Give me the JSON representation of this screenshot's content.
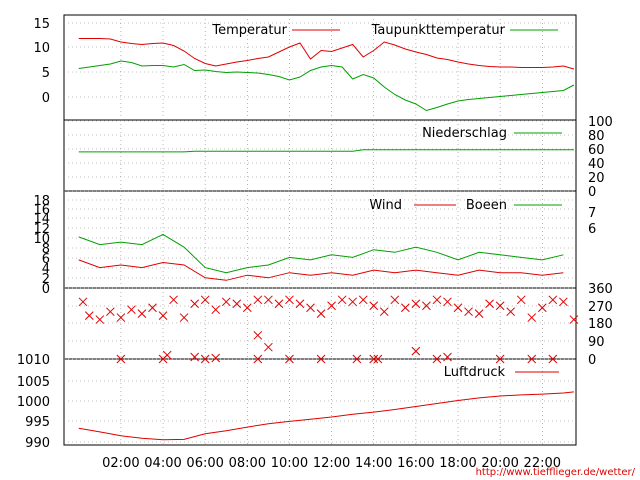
{
  "source_url": "http://www.tiefflieger.de/wetter/",
  "colors": {
    "red": "#e00000",
    "green": "#00a000",
    "grid": "#888888"
  },
  "chart_data": [
    {
      "type": "line",
      "ylim": [
        -5,
        16
      ],
      "yticks": [
        "15",
        "10",
        "5",
        "0"
      ],
      "grid": true,
      "legend_placement": "top-right",
      "series": [
        {
          "name": "Temperatur",
          "color": "red",
          "x": [
            0,
            0.5,
            1,
            1.5,
            2,
            2.5,
            3,
            3.5,
            4,
            4.5,
            5,
            5.5,
            6,
            6.5,
            7,
            7.5,
            8,
            8.5,
            9,
            9.5,
            10,
            10.5,
            11,
            11.5,
            12,
            12.5,
            13,
            13.5,
            14,
            14.5,
            15,
            15.5,
            16,
            16.5,
            17,
            17.5,
            18,
            18.5,
            19,
            19.5,
            20,
            20.5,
            21,
            21.5,
            22,
            22.5,
            23,
            23.5
          ],
          "y": [
            11.3,
            11.3,
            11.3,
            11.2,
            10.6,
            10.3,
            10.1,
            10.3,
            10.4,
            9.9,
            8.8,
            7.3,
            6.3,
            5.8,
            6.2,
            6.6,
            6.9,
            7.3,
            7.6,
            8.6,
            9.6,
            10.4,
            7.2,
            8.9,
            8.7,
            9.4,
            10.1,
            7.6,
            8.9,
            10.6,
            10.0,
            9.2,
            8.6,
            8.1,
            7.4,
            7.1,
            6.6,
            6.2,
            5.9,
            5.7,
            5.6,
            5.6,
            5.5,
            5.5,
            5.5,
            5.6,
            5.8,
            5.2
          ]
        },
        {
          "name": "Taupunkttemperatur",
          "color": "green",
          "x": [
            0,
            0.5,
            1,
            1.5,
            2,
            2.5,
            3,
            3.5,
            4,
            4.5,
            5,
            5.5,
            6,
            6.5,
            7,
            7.5,
            8,
            8.5,
            9,
            9.5,
            10,
            10.5,
            11,
            11.5,
            12,
            12.5,
            13,
            13.5,
            14,
            14.5,
            15,
            15.5,
            16,
            16.5,
            17,
            17.5,
            18,
            18.5,
            19,
            19.5,
            20,
            20.5,
            21,
            21.5,
            22,
            22.5,
            23,
            23.5
          ],
          "y": [
            5.3,
            5.6,
            5.9,
            6.2,
            6.8,
            6.5,
            5.8,
            5.9,
            5.9,
            5.6,
            6.1,
            4.9,
            5.0,
            4.7,
            4.5,
            4.6,
            4.5,
            4.4,
            4.1,
            3.7,
            3.0,
            3.6,
            4.9,
            5.6,
            5.9,
            5.6,
            3.2,
            4.1,
            3.4,
            1.6,
            0.1,
            -1.0,
            -1.8,
            -3.1,
            -2.5,
            -1.8,
            -1.2,
            -0.9,
            -0.7,
            -0.5,
            -0.3,
            -0.1,
            0.1,
            0.3,
            0.5,
            0.7,
            0.9,
            2.0
          ]
        }
      ]
    },
    {
      "type": "line",
      "ylim": [
        0,
        100
      ],
      "yticks": [
        "100",
        "80",
        "60",
        "40",
        "20",
        "0"
      ],
      "grid": true,
      "legend_placement": "top-right",
      "series": [
        {
          "name": "Niederschlag",
          "color": "green",
          "x": [
            0,
            5,
            5.5,
            13,
            13.5,
            23.5
          ],
          "y": [
            55,
            55,
            56,
            56,
            58,
            58
          ]
        }
      ]
    },
    {
      "type": "line",
      "ylim": [
        0,
        19
      ],
      "yticks": [
        "18",
        "16",
        "14",
        "12",
        "10",
        "8",
        "6",
        "4",
        "2",
        "0"
      ],
      "y2ticks": [
        "7",
        "6"
      ],
      "grid": true,
      "legend_placement": "top-right",
      "series": [
        {
          "name": "Wind",
          "color": "red",
          "x": [
            0,
            1,
            2,
            3,
            4,
            5,
            6,
            7,
            8,
            9,
            10,
            11,
            12,
            13,
            14,
            15,
            16,
            17,
            18,
            19,
            20,
            21,
            22,
            23
          ],
          "y": [
            5.5,
            4.0,
            4.5,
            4.0,
            5.0,
            4.5,
            2.0,
            1.5,
            2.5,
            2.0,
            3.0,
            2.5,
            3.0,
            2.5,
            3.5,
            3.0,
            3.5,
            3.0,
            2.5,
            3.5,
            3.0,
            3.0,
            2.5,
            3.0
          ]
        },
        {
          "name": "Boeen",
          "color": "green",
          "x": [
            0,
            1,
            2,
            3,
            4,
            5,
            6,
            7,
            8,
            9,
            10,
            11,
            12,
            13,
            14,
            15,
            16,
            17,
            18,
            19,
            20,
            21,
            22,
            23
          ],
          "y": [
            10.0,
            8.5,
            9.0,
            8.5,
            10.5,
            8.0,
            4.0,
            3.0,
            4.0,
            4.5,
            6.0,
            5.5,
            6.5,
            6.0,
            7.5,
            7.0,
            8.0,
            7.0,
            5.5,
            7.0,
            6.5,
            6.0,
            5.5,
            6.5
          ]
        }
      ]
    },
    {
      "type": "scatter",
      "ylim": [
        0,
        360
      ],
      "yticks": [
        "360",
        "270",
        "180",
        "90",
        "0"
      ],
      "grid": true,
      "series": [
        {
          "name": "",
          "color": "red",
          "x": [
            0.2,
            0.5,
            1,
            1.5,
            2,
            2.5,
            3,
            3.5,
            4,
            4.5,
            5,
            5.5,
            6,
            6.5,
            7,
            7.5,
            8,
            8.5,
            9,
            9.5,
            10,
            10.5,
            11,
            11.5,
            12,
            12.5,
            13,
            13.5,
            14,
            14.5,
            15,
            15.5,
            16,
            16.5,
            17,
            17.5,
            18,
            18.5,
            19,
            19.5,
            20,
            20.5,
            21,
            21.5,
            22,
            22.5,
            23,
            23.5,
            4.2,
            5.5,
            6.5,
            8.5,
            9,
            14,
            16,
            17.5,
            2,
            4,
            6,
            8.5,
            10,
            11.5,
            13.2,
            14.2,
            17,
            20,
            21.5,
            22.5
          ],
          "y": [
            290,
            220,
            200,
            240,
            210,
            250,
            230,
            260,
            220,
            300,
            210,
            280,
            300,
            250,
            290,
            280,
            260,
            300,
            300,
            280,
            300,
            280,
            260,
            230,
            270,
            300,
            290,
            300,
            270,
            240,
            300,
            260,
            280,
            270,
            300,
            290,
            260,
            240,
            230,
            280,
            270,
            240,
            300,
            210,
            260,
            300,
            290,
            200,
            20,
            10,
            5,
            120,
            60,
            0,
            40,
            10,
            0,
            0,
            0,
            0,
            0,
            0,
            0,
            0,
            0,
            0,
            0,
            0
          ]
        }
      ]
    },
    {
      "type": "line",
      "ylim": [
        989,
        1012
      ],
      "yticks": [
        "1010",
        "1005",
        "1000",
        "995",
        "990"
      ],
      "xticks": [
        "02:00",
        "04:00",
        "06:00",
        "08:00",
        "10:00",
        "12:00",
        "14:00",
        "16:00",
        "18:00",
        "20:00",
        "22:00"
      ],
      "grid": true,
      "legend_placement": "top-right",
      "series": [
        {
          "name": "Luftdruck",
          "color": "red",
          "x": [
            0,
            1,
            2,
            3,
            4,
            5,
            6,
            7,
            8,
            9,
            10,
            11,
            12,
            13,
            14,
            15,
            16,
            17,
            18,
            19,
            20,
            21,
            22,
            23,
            23.5
          ],
          "y": [
            993.5,
            992.5,
            991.5,
            990.8,
            990.4,
            990.5,
            992.0,
            992.8,
            993.8,
            994.7,
            995.3,
            995.9,
            996.5,
            997.2,
            997.8,
            998.5,
            999.3,
            1000.1,
            1000.9,
            1001.6,
            1002.1,
            1002.4,
            1002.6,
            1002.9,
            1003.2
          ]
        }
      ]
    }
  ]
}
